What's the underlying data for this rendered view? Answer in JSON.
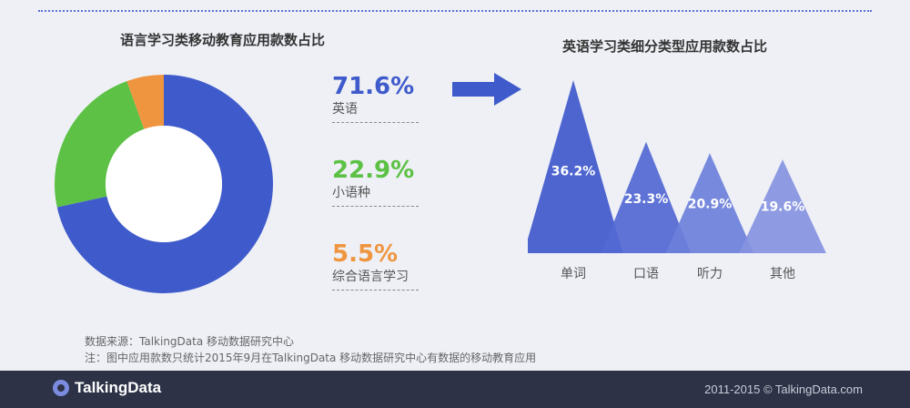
{
  "left_chart": {
    "title": "语言学习类移动教育应用款数占比"
  },
  "right_chart": {
    "title": "英语学习类细分类型应用款数占比"
  },
  "stats": [
    {
      "pct": "71.6%",
      "name": "英语",
      "color": "#3f5bcb"
    },
    {
      "pct": "22.9%",
      "name": "小语种",
      "color": "#5cc144"
    },
    {
      "pct": "5.5%",
      "name": "综合语言学习",
      "color": "#f0953f"
    }
  ],
  "source": {
    "line1": "数据来源：TalkingData  移动数据研究中心",
    "line2": "注：图中应用款数只统计2015年9月在TalkingData  移动数据研究中心有数据的移动教育应用"
  },
  "footer": {
    "logo": "TalkingData",
    "copyright": "2011-2015 © TalkingData.com"
  },
  "chart_data": [
    {
      "type": "pie",
      "title": "语言学习类移动教育应用款数占比",
      "categories": [
        "英语",
        "小语种",
        "综合语言学习"
      ],
      "values": [
        71.6,
        22.9,
        5.5
      ],
      "colors": [
        "#3f5bcb",
        "#5cc144",
        "#f0953f"
      ]
    },
    {
      "type": "bar",
      "title": "英语学习类细分类型应用款数占比",
      "categories": [
        "单词",
        "口语",
        "听力",
        "其他"
      ],
      "values": [
        36.2,
        23.3,
        20.9,
        19.6
      ],
      "labels": [
        "36.2%",
        "23.3%",
        "20.9%",
        "19.6%"
      ],
      "colors": [
        "#4059cc",
        "#5368d2",
        "#6d80da",
        "#8693e0"
      ]
    }
  ]
}
